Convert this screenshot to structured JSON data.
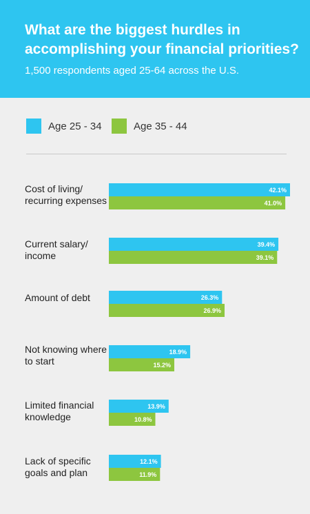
{
  "header": {
    "title": "What are the biggest hurdles in accomplishing your financial priorities?",
    "subtitle": "1,500 respondents aged 25-64 across the U.S."
  },
  "colors": {
    "header_bg": "#2ec5f0",
    "background": "#efefef",
    "series_1": "#2ec5f0",
    "series_2": "#8dc63f"
  },
  "chart_data": {
    "type": "bar",
    "orientation": "horizontal",
    "title": "What are the biggest hurdles in accomplishing your financial priorities?",
    "subtitle": "1,500 respondents aged 25-64 across the U.S.",
    "categories": [
      "Cost of living/ recurring expenses",
      "Current salary/ income",
      "Amount of debt",
      "Not knowing where to start",
      "Limited financial knowledge",
      "Lack of specific goals and plan"
    ],
    "series": [
      {
        "name": "Age 25 - 34",
        "color": "#2ec5f0",
        "values": [
          42.1,
          39.4,
          26.3,
          18.9,
          13.9,
          12.1
        ]
      },
      {
        "name": "Age 35 - 44",
        "color": "#8dc63f",
        "values": [
          41.0,
          39.1,
          26.9,
          15.2,
          10.8,
          11.9
        ]
      }
    ],
    "value_suffix": "%",
    "legend_position": "top-left",
    "grid": false
  }
}
